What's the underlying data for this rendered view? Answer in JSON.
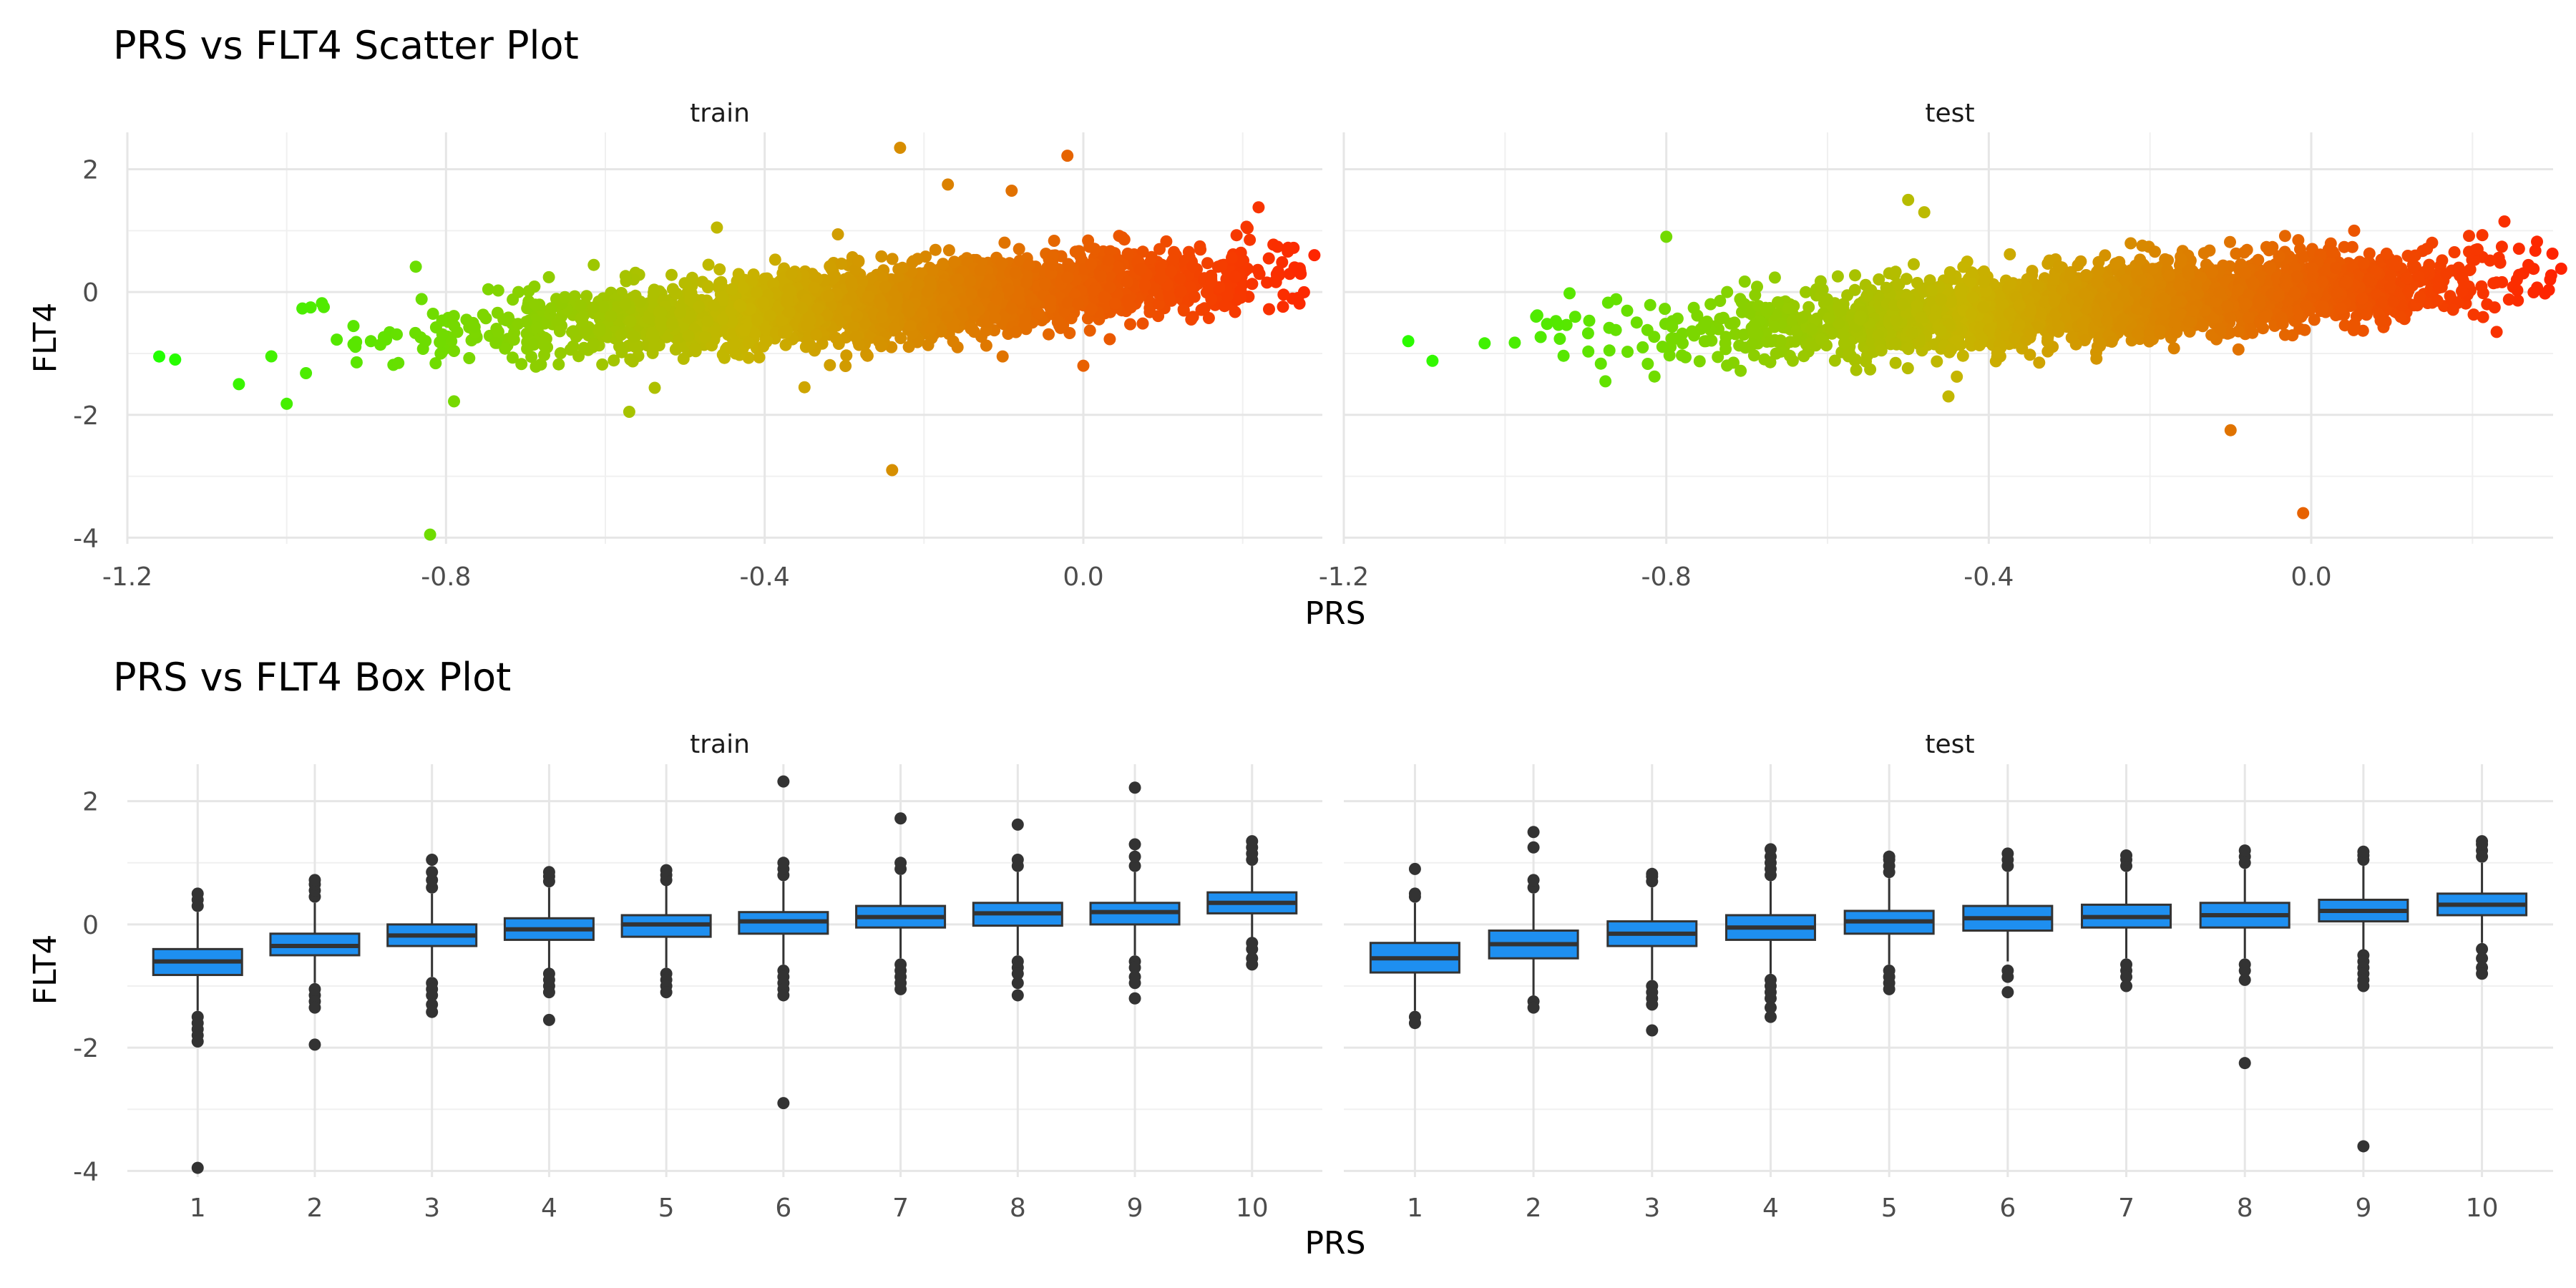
{
  "chart_data": [
    {
      "type": "scatter",
      "title": "PRS vs FLT4 Scatter Plot",
      "xlabel": "PRS",
      "ylabel": "FLT4",
      "facets": [
        "train",
        "test"
      ],
      "xlim": [
        -1.2,
        0.3
      ],
      "ylim": [
        -4.1,
        2.6
      ],
      "x_ticks": [
        "-1.2",
        "-0.8",
        "-0.4",
        "0.0"
      ],
      "y_ticks": [
        "2",
        "0",
        "-2",
        "-4"
      ],
      "color_scale": {
        "low": "#22ff00",
        "high": "#ff2200",
        "mapped_to": "PRS"
      },
      "trend": {
        "slope": 0.95,
        "intercept": 0.0
      },
      "series": [
        {
          "facet": "train",
          "x_range": [
            -1.16,
            0.3
          ],
          "notable_points": [
            {
              "x": -1.16,
              "y": -1.05
            },
            {
              "x": -1.14,
              "y": -1.1
            },
            {
              "x": -1.06,
              "y": -1.5
            },
            {
              "x": -1.0,
              "y": -1.82
            },
            {
              "x": -0.97,
              "y": -0.25
            },
            {
              "x": -0.82,
              "y": -3.95
            },
            {
              "x": -0.79,
              "y": -1.78
            },
            {
              "x": -0.57,
              "y": -1.95
            },
            {
              "x": -0.46,
              "y": 1.05
            },
            {
              "x": -0.35,
              "y": -1.55
            },
            {
              "x": -0.24,
              "y": -2.9
            },
            {
              "x": -0.23,
              "y": 2.35
            },
            {
              "x": -0.17,
              "y": 1.75
            },
            {
              "x": -0.09,
              "y": 1.65
            },
            {
              "x": -0.02,
              "y": 2.22
            },
            {
              "x": 0.0,
              "y": -1.2
            },
            {
              "x": 0.22,
              "y": 1.38
            },
            {
              "x": 0.29,
              "y": 0.6
            }
          ]
        },
        {
          "facet": "test",
          "x_range": [
            -1.12,
            0.32
          ],
          "notable_points": [
            {
              "x": -1.12,
              "y": -0.8
            },
            {
              "x": -1.09,
              "y": -1.12
            },
            {
              "x": -0.96,
              "y": -0.38
            },
            {
              "x": -0.92,
              "y": -0.02
            },
            {
              "x": -0.8,
              "y": 0.9
            },
            {
              "x": -0.5,
              "y": 1.5
            },
            {
              "x": -0.48,
              "y": 1.3
            },
            {
              "x": -0.45,
              "y": -1.7
            },
            {
              "x": -0.1,
              "y": -2.25
            },
            {
              "x": -0.01,
              "y": -3.6
            },
            {
              "x": 0.23,
              "y": -0.65
            },
            {
              "x": 0.28,
              "y": 0.82
            },
            {
              "x": 0.31,
              "y": 0.38
            }
          ]
        }
      ],
      "grid": true
    },
    {
      "type": "box",
      "title": "PRS vs FLT4 Box Plot",
      "xlabel": "PRS",
      "ylabel": "FLT4",
      "facets": [
        "train",
        "test"
      ],
      "categories": [
        "1",
        "2",
        "3",
        "4",
        "5",
        "6",
        "7",
        "8",
        "9",
        "10"
      ],
      "ylim": [
        -4.1,
        2.6
      ],
      "y_ticks": [
        "2",
        "0",
        "-2",
        "-4"
      ],
      "box_color": "#1e8ff0",
      "series": [
        {
          "facet": "train",
          "boxes": [
            {
              "q1": -0.82,
              "median": -0.6,
              "q3": -0.4,
              "whisker_low": -1.4,
              "whisker_high": 0.2,
              "outliers": [
                0.3,
                0.4,
                0.5,
                -1.5,
                -1.6,
                -1.7,
                -1.8,
                -1.9,
                -3.95
              ]
            },
            {
              "q1": -0.5,
              "median": -0.35,
              "q3": -0.15,
              "whisker_low": -0.95,
              "whisker_high": 0.35,
              "outliers": [
                0.45,
                0.55,
                0.65,
                0.72,
                -1.05,
                -1.15,
                -1.25,
                -1.35,
                -1.95
              ]
            },
            {
              "q1": -0.35,
              "median": -0.18,
              "q3": 0.0,
              "whisker_low": -0.85,
              "whisker_high": 0.5,
              "outliers": [
                0.6,
                0.72,
                0.85,
                1.05,
                -0.95,
                -1.05,
                -1.15,
                -1.3,
                -1.42
              ]
            },
            {
              "q1": -0.25,
              "median": -0.08,
              "q3": 0.1,
              "whisker_low": -0.75,
              "whisker_high": 0.6,
              "outliers": [
                0.7,
                0.78,
                0.85,
                -0.8,
                -0.9,
                -1.0,
                -1.1,
                -1.55
              ]
            },
            {
              "q1": -0.2,
              "median": 0.0,
              "q3": 0.15,
              "whisker_low": -0.7,
              "whisker_high": 0.65,
              "outliers": [
                0.72,
                0.8,
                0.88,
                -0.8,
                -0.9,
                -1.0,
                -1.1
              ]
            },
            {
              "q1": -0.15,
              "median": 0.05,
              "q3": 0.2,
              "whisker_low": -0.65,
              "whisker_high": 0.7,
              "outliers": [
                0.8,
                0.9,
                1.0,
                2.32,
                -0.75,
                -0.85,
                -0.95,
                -1.05,
                -1.15,
                -2.9
              ]
            },
            {
              "q1": -0.05,
              "median": 0.12,
              "q3": 0.3,
              "whisker_low": -0.55,
              "whisker_high": 0.8,
              "outliers": [
                0.9,
                1.0,
                1.72,
                -0.65,
                -0.75,
                -0.85,
                -0.95,
                -1.05
              ]
            },
            {
              "q1": -0.02,
              "median": 0.18,
              "q3": 0.35,
              "whisker_low": -0.5,
              "whisker_high": 0.85,
              "outliers": [
                0.95,
                1.05,
                1.62,
                -0.6,
                -0.7,
                -0.8,
                -0.95,
                -1.15
              ]
            },
            {
              "q1": 0.0,
              "median": 0.2,
              "q3": 0.35,
              "whisker_low": -0.5,
              "whisker_high": 0.85,
              "outliers": [
                0.95,
                1.1,
                1.3,
                2.22,
                -0.6,
                -0.7,
                -0.85,
                -0.95,
                -1.2
              ]
            },
            {
              "q1": 0.18,
              "median": 0.35,
              "q3": 0.52,
              "whisker_low": -0.25,
              "whisker_high": 0.95,
              "outliers": [
                1.05,
                1.15,
                1.25,
                1.35,
                -0.3,
                -0.4,
                -0.55,
                -0.65
              ]
            }
          ]
        },
        {
          "facet": "test",
          "boxes": [
            {
              "q1": -0.78,
              "median": -0.55,
              "q3": -0.3,
              "whisker_low": -1.4,
              "whisker_high": 0.35,
              "outliers": [
                0.45,
                0.5,
                0.9,
                -1.5,
                -1.6
              ]
            },
            {
              "q1": -0.55,
              "median": -0.32,
              "q3": -0.1,
              "whisker_low": -1.15,
              "whisker_high": 0.5,
              "outliers": [
                0.6,
                0.72,
                1.25,
                1.5,
                -1.25,
                -1.35
              ]
            },
            {
              "q1": -0.35,
              "median": -0.15,
              "q3": 0.05,
              "whisker_low": -0.9,
              "whisker_high": 0.6,
              "outliers": [
                0.7,
                0.78,
                0.82,
                -1.0,
                -1.1,
                -1.2,
                -1.3,
                -1.72
              ]
            },
            {
              "q1": -0.25,
              "median": -0.05,
              "q3": 0.15,
              "whisker_low": -0.8,
              "whisker_high": 0.7,
              "outliers": [
                0.8,
                0.9,
                1.0,
                1.1,
                1.22,
                -0.9,
                -1.0,
                -1.1,
                -1.2,
                -1.35,
                -1.5
              ]
            },
            {
              "q1": -0.15,
              "median": 0.05,
              "q3": 0.22,
              "whisker_low": -0.65,
              "whisker_high": 0.75,
              "outliers": [
                0.85,
                0.95,
                1.05,
                1.1,
                -0.75,
                -0.85,
                -0.95,
                -1.05
              ]
            },
            {
              "q1": -0.1,
              "median": 0.1,
              "q3": 0.3,
              "whisker_low": -0.6,
              "whisker_high": 0.85,
              "outliers": [
                0.95,
                1.05,
                1.15,
                -0.75,
                -0.85,
                -1.1
              ]
            },
            {
              "q1": -0.05,
              "median": 0.12,
              "q3": 0.32,
              "whisker_low": -0.55,
              "whisker_high": 0.85,
              "outliers": [
                0.95,
                1.05,
                1.12,
                -0.65,
                -0.75,
                -0.85,
                -1.0
              ]
            },
            {
              "q1": -0.05,
              "median": 0.15,
              "q3": 0.35,
              "whisker_low": -0.55,
              "whisker_high": 0.9,
              "outliers": [
                1.0,
                1.1,
                1.2,
                -0.65,
                -0.75,
                -0.9,
                -2.25
              ]
            },
            {
              "q1": 0.05,
              "median": 0.22,
              "q3": 0.4,
              "whisker_low": -0.45,
              "whisker_high": 0.95,
              "outliers": [
                1.05,
                1.12,
                1.18,
                -0.5,
                -0.6,
                -0.7,
                -0.8,
                -0.9,
                -1.0,
                -3.6
              ]
            },
            {
              "q1": 0.15,
              "median": 0.32,
              "q3": 0.5,
              "whisker_low": -0.3,
              "whisker_high": 1.0,
              "outliers": [
                1.1,
                1.2,
                1.3,
                1.35,
                -0.4,
                -0.55,
                -0.7,
                -0.8
              ]
            }
          ]
        }
      ],
      "grid": true
    }
  ]
}
